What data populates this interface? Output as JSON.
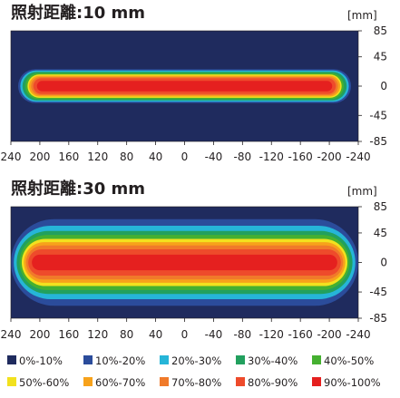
{
  "chart_data": [
    {
      "type": "heatmap",
      "title": "照射距離:10 mm",
      "unit_label": "[mm]",
      "xlim": [
        240,
        -240
      ],
      "ylim": [
        -85,
        85
      ],
      "xticks": [
        "240",
        "200",
        "160",
        "120",
        "80",
        "40",
        "0",
        "-40",
        "-80",
        "-120",
        "-160",
        "-200",
        "-240"
      ],
      "yticks": [
        "85",
        "45",
        "0",
        "-45",
        "-85"
      ],
      "background_band": "0%-10%",
      "bands": [
        {
          "band": "10%-20%",
          "x_range": [
            -230,
            230
          ],
          "y_range": [
            -26,
            26
          ]
        },
        {
          "band": "20%-30%",
          "x_range": [
            -227,
            227
          ],
          "y_range": [
            -24,
            24
          ]
        },
        {
          "band": "30%-40%",
          "x_range": [
            -224,
            224
          ],
          "y_range": [
            -22,
            22
          ]
        },
        {
          "band": "40%-50%",
          "x_range": [
            -220,
            220
          ],
          "y_range": [
            -20,
            20
          ]
        },
        {
          "band": "50%-60%",
          "x_range": [
            -217,
            217
          ],
          "y_range": [
            -18,
            18
          ]
        },
        {
          "band": "60%-70%",
          "x_range": [
            -215,
            215
          ],
          "y_range": [
            -16,
            16
          ]
        },
        {
          "band": "70%-80%",
          "x_range": [
            -212,
            212
          ],
          "y_range": [
            -14,
            14
          ]
        },
        {
          "band": "80%-90%",
          "x_range": [
            -209,
            209
          ],
          "y_range": [
            -12,
            12
          ]
        },
        {
          "band": "90%-100%",
          "x_range": [
            -204,
            204
          ],
          "y_range": [
            -8,
            8
          ]
        }
      ]
    },
    {
      "type": "heatmap",
      "title": "照射距離:30 mm",
      "unit_label": "[mm]",
      "xlim": [
        240,
        -240
      ],
      "ylim": [
        -85,
        85
      ],
      "xticks": [
        "240",
        "200",
        "160",
        "120",
        "80",
        "40",
        "0",
        "-40",
        "-80",
        "-120",
        "-160",
        "-200",
        "-240"
      ],
      "yticks": [
        "85",
        "45",
        "0",
        "-45",
        "-85"
      ],
      "background_band": "0%-10%",
      "bands": [
        {
          "band": "10%-20%",
          "x_range": [
            -240,
            240
          ],
          "y_range": [
            -66,
            66
          ]
        },
        {
          "band": "20%-30%",
          "x_range": [
            -236,
            236
          ],
          "y_range": [
            -56,
            56
          ]
        },
        {
          "band": "30%-40%",
          "x_range": [
            -232,
            232
          ],
          "y_range": [
            -48,
            48
          ]
        },
        {
          "band": "40%-50%",
          "x_range": [
            -228,
            228
          ],
          "y_range": [
            -42,
            42
          ]
        },
        {
          "band": "50%-60%",
          "x_range": [
            -225,
            225
          ],
          "y_range": [
            -36,
            36
          ]
        },
        {
          "band": "60%-70%",
          "x_range": [
            -222,
            222
          ],
          "y_range": [
            -31,
            31
          ]
        },
        {
          "band": "70%-80%",
          "x_range": [
            -219,
            219
          ],
          "y_range": [
            -26,
            26
          ]
        },
        {
          "band": "80%-90%",
          "x_range": [
            -216,
            216
          ],
          "y_range": [
            -20,
            20
          ]
        },
        {
          "band": "90%-100%",
          "x_range": [
            -211,
            211
          ],
          "y_range": [
            -12,
            12
          ]
        }
      ]
    }
  ],
  "legend": [
    {
      "label": "0%-10%",
      "color": "#1f2b5e"
    },
    {
      "label": "10%-20%",
      "color": "#2b4c9b"
    },
    {
      "label": "20%-30%",
      "color": "#26b5d8"
    },
    {
      "label": "30%-40%",
      "color": "#22a05e"
    },
    {
      "label": "40%-50%",
      "color": "#45b030"
    },
    {
      "label": "50%-60%",
      "color": "#f2e11e"
    },
    {
      "label": "60%-70%",
      "color": "#f7a21b"
    },
    {
      "label": "70%-80%",
      "color": "#f07a2a"
    },
    {
      "label": "80%-90%",
      "color": "#ee4b2b"
    },
    {
      "label": "90%-100%",
      "color": "#e5201f"
    }
  ]
}
